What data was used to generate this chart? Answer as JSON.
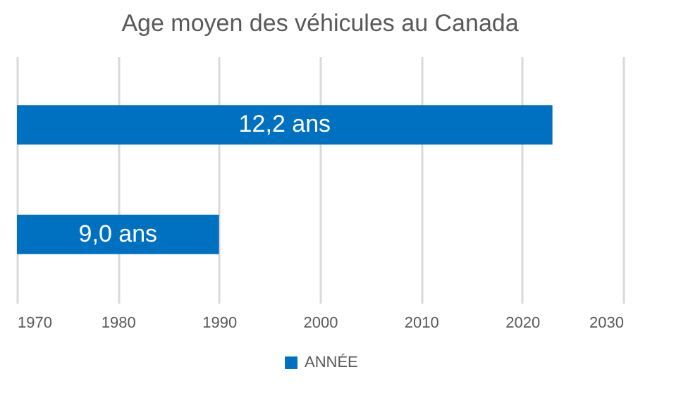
{
  "chart_data": {
    "type": "bar",
    "orientation": "horizontal",
    "title": "Age moyen des véhicules au Canada",
    "categories": [
      null,
      null
    ],
    "series": [
      {
        "name": "ANNÉE",
        "color": "#0070c0",
        "values": [
          2023,
          1990
        ]
      }
    ],
    "annotations": [
      "12,2 ans",
      "9,0 ans"
    ],
    "xlim": [
      1970,
      2030
    ],
    "xticks": [
      1970,
      1980,
      1990,
      2000,
      2010,
      2020,
      2030
    ],
    "grid": "x",
    "legend": "bottom"
  }
}
